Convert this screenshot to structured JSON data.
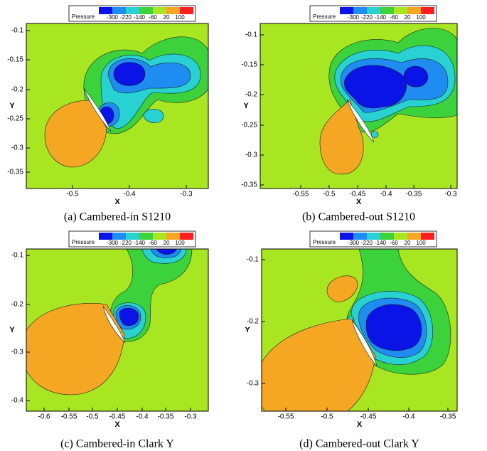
{
  "legend": {
    "title": "Pressure",
    "labels": [
      "-300",
      "-220",
      "-140",
      "-60",
      "20",
      "100"
    ],
    "colors": [
      "#0a14e6",
      "#1e8cf0",
      "#28d2d2",
      "#3cd23c",
      "#a8e622",
      "#f5a623",
      "#ff1e1e"
    ]
  },
  "panels": [
    {
      "caption": "(a)  Cambered-in S1210",
      "x_label": "X",
      "y_label": "Y",
      "x_ticks": [
        "-0.5",
        "-0.4",
        "-0.3"
      ],
      "y_ticks": [
        "-0.1",
        "-0.15",
        "-0.2",
        "-0.25",
        "-0.3",
        "-0.35"
      ]
    },
    {
      "caption": "(b)  Cambered-out S1210",
      "x_label": "X",
      "y_label": "Y",
      "x_ticks": [
        "-0.55",
        "-0.5",
        "-0.45",
        "-0.4",
        "-0.35",
        "-0.3"
      ],
      "y_ticks": [
        "-0.1",
        "-0.15",
        "-0.2",
        "-0.25",
        "-0.3",
        "-0.35"
      ]
    },
    {
      "caption": "(c)  Cambered-in Clark Y",
      "x_label": "X",
      "y_label": "Y",
      "x_ticks": [
        "-0.6",
        "-0.55",
        "-0.5",
        "-0.45",
        "-0.4",
        "-0.35",
        "-0.3"
      ],
      "y_ticks": [
        "-0.1",
        "-0.2",
        "-0.3",
        "-0.4"
      ]
    },
    {
      "caption": "(d)  Cambered-out Clark Y",
      "x_label": "X",
      "y_label": "Y",
      "x_ticks": [
        "-0.55",
        "-0.5",
        "-0.45",
        "-0.4",
        "-0.35"
      ],
      "y_ticks": [
        "-0.1",
        "-0.2",
        "-0.3"
      ]
    }
  ]
}
